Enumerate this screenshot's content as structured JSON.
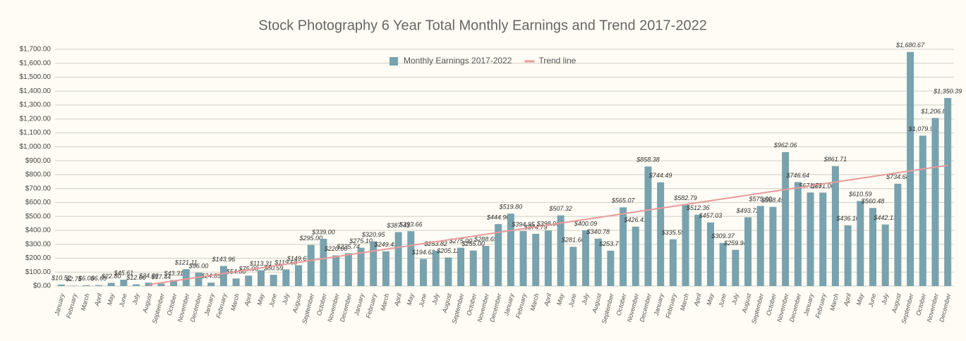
{
  "chart_data": {
    "type": "bar",
    "title": "Stock Photography 6 Year Total Monthly Earnings and Trend 2017-2022",
    "categories": [
      "January",
      "February",
      "March",
      "April",
      "May",
      "June",
      "July",
      "August",
      "September",
      "October",
      "November",
      "December",
      "January",
      "February",
      "March",
      "April",
      "May",
      "June",
      "July",
      "August",
      "September",
      "October",
      "November",
      "December",
      "January",
      "February",
      "March",
      "April",
      "May",
      "June",
      "July",
      "August",
      "September",
      "October",
      "November",
      "December",
      "January",
      "February",
      "March",
      "April",
      "May",
      "June",
      "July",
      "August",
      "September",
      "October",
      "November",
      "December",
      "January",
      "February",
      "March",
      "April",
      "May",
      "June",
      "July",
      "August",
      "September",
      "October",
      "November",
      "December",
      "January",
      "February",
      "March",
      "April",
      "May",
      "June",
      "July",
      "August",
      "September",
      "October",
      "November",
      "December"
    ],
    "series": [
      {
        "name": "Monthly Earnings 2017-2022",
        "color": "#78a2ae",
        "values": [
          10.52,
          2.75,
          6.0,
          6.65,
          22.8,
          45.61,
          12.0,
          24.0,
          17.44,
          43.31,
          121.11,
          96.0,
          24.85,
          143.96,
          54.0,
          75.0,
          113.31,
          80.59,
          119.68,
          149.67,
          295.0,
          339.0,
          220.0,
          235.74,
          275.1,
          320.95,
          249.43,
          387.43,
          393.66,
          194.62,
          253.82,
          205.12,
          275.0,
          255.0,
          288.69,
          444.9,
          519.8,
          394.95,
          374.79,
          398.93,
          507.32,
          281.66,
          400.09,
          340.78,
          253.77,
          565.07,
          426.41,
          858.38,
          744.49,
          335.59,
          582.79,
          512.36,
          457.03,
          309.37,
          259.94,
          493.72,
          575.0,
          568.45,
          962.06,
          746.64,
          671.75,
          671.0,
          861.71,
          436.1,
          610.59,
          560.48,
          442.13,
          734.68,
          1680.67,
          1079.9,
          1206.8,
          1350.39
        ],
        "value_labels": [
          "$10.52",
          "$2.75",
          "$6.00",
          "$6.65",
          "$22.80",
          "$45.61",
          "$12.00",
          "$24.00",
          "$17.44",
          "$43.31",
          "$121.11",
          "$96.00",
          "$24.85",
          "$143.96",
          "$54.00",
          "$75.00",
          "$113.31",
          "$80.59",
          "$119.68",
          "$149.67",
          "$295.00",
          "$339.00",
          "$220.00",
          "$235.74",
          "$275.10",
          "$320.95",
          "$249.43",
          "$387.43",
          "$393.66",
          "$194.62",
          "$253.82",
          "$205.12",
          "$275.00",
          "$255.00",
          "$288.69",
          "$444.90",
          "$519.80",
          "$394.95",
          "$374.79",
          "$398.93",
          "$507.32",
          "$281.66",
          "$400.09",
          "$340.78",
          "$253.77",
          "$565.07",
          "$426.41",
          "$858.38",
          "$744.49",
          "$335.59",
          "$582.79",
          "$512.36",
          "$457.03",
          "$309.37",
          "$259.94",
          "$493.72",
          "$575.00",
          "$568.45",
          "$962.06",
          "$746.64",
          "$671.75",
          "$671.00",
          "$861.71",
          "$436.10",
          "$610.59",
          "$560.48",
          "$442.13",
          "$734.68",
          "$1,680.67",
          "$1,079.90",
          "$1,206.80",
          "$1,350.39"
        ]
      },
      {
        "name": "Trend line",
        "color": "#e89a9a",
        "line": true,
        "values": [
          null,
          null,
          null,
          null,
          null,
          null,
          null,
          9.8,
          23.2,
          36.6,
          50,
          63.4,
          76.8,
          90.2,
          103.6,
          117,
          130.4,
          143.8,
          157.2,
          170.6,
          184,
          197.4,
          210.8,
          224.2,
          237.6,
          251,
          264.4,
          277.8,
          291.2,
          304.6,
          318,
          331.4,
          344.8,
          358.2,
          371.6,
          385,
          398.4,
          411.8,
          425.2,
          438.6,
          452,
          465.4,
          478.8,
          492.2,
          505.6,
          519,
          532.4,
          545.8,
          559.2,
          572.6,
          586,
          599.4,
          612.8,
          626.2,
          639.6,
          653,
          666.4,
          679.8,
          693.2,
          706.6,
          720,
          733.4,
          746.8,
          760.2,
          773.6,
          787,
          800.4,
          813.8,
          827.2,
          840.6,
          854,
          867.4
        ]
      }
    ],
    "ylim": [
      0,
      1700
    ],
    "yticks": [
      {
        "value": 0,
        "label": "$0.00"
      },
      {
        "value": 100,
        "label": "$100.00"
      },
      {
        "value": 200,
        "label": "$200.00"
      },
      {
        "value": 300,
        "label": "$300.00"
      },
      {
        "value": 400,
        "label": "$400.00"
      },
      {
        "value": 500,
        "label": "$500.00"
      },
      {
        "value": 600,
        "label": "$600.00"
      },
      {
        "value": 700,
        "label": "$700.00"
      },
      {
        "value": 800,
        "label": "$800.00"
      },
      {
        "value": 900,
        "label": "$900.00"
      },
      {
        "value": 1000,
        "label": "$1,000.00"
      },
      {
        "value": 1100,
        "label": "$1,100.00"
      },
      {
        "value": 1200,
        "label": "$1,200.00"
      },
      {
        "value": 1300,
        "label": "$1,300.00"
      },
      {
        "value": 1400,
        "label": "$1,400.00"
      },
      {
        "value": 1500,
        "label": "$1,500.00"
      },
      {
        "value": 1600,
        "label": "$1,600.00"
      },
      {
        "value": 1700,
        "label": "$1,700.00"
      }
    ],
    "grid": true,
    "legend": "top"
  }
}
